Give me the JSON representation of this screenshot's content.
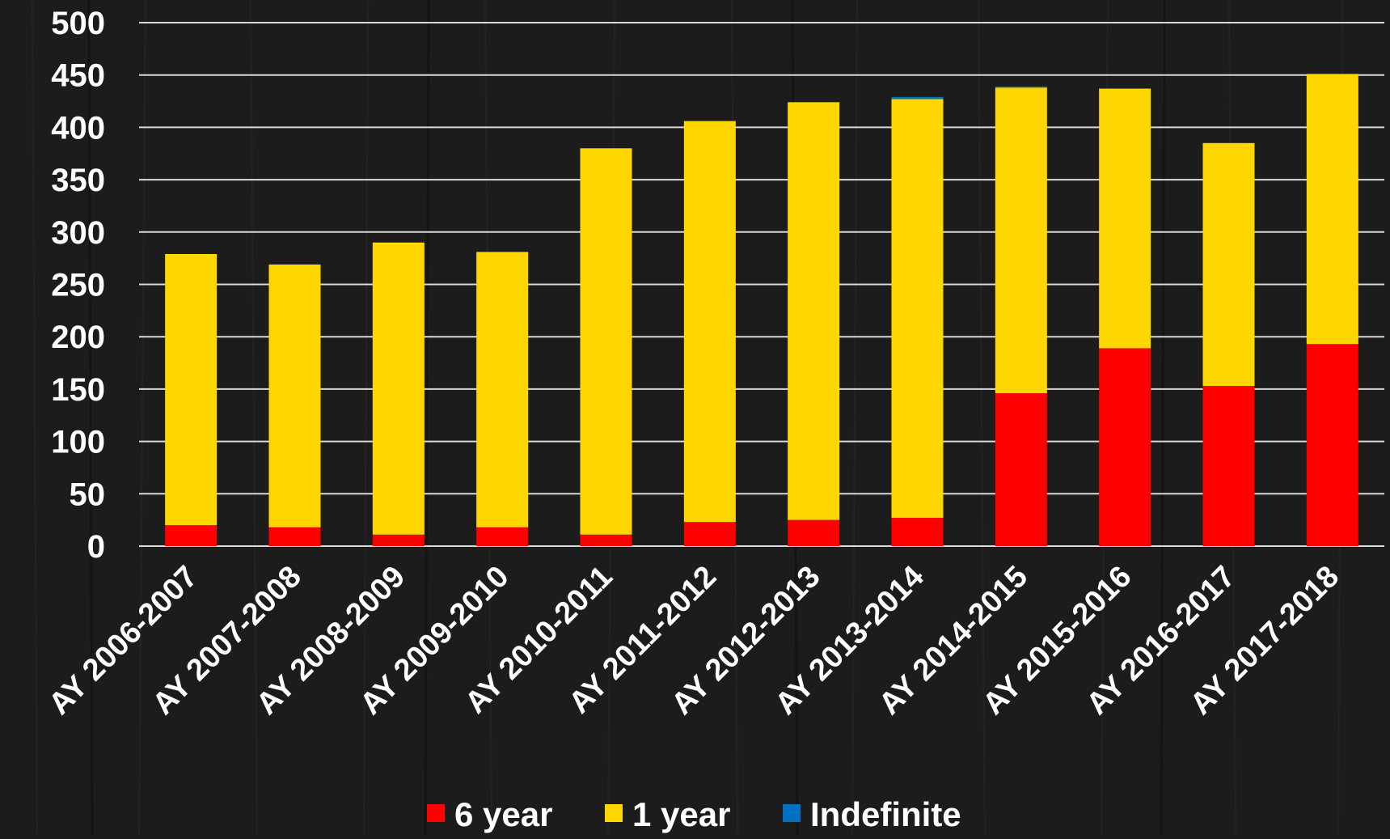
{
  "colors": {
    "six_year": "#ff0000",
    "one_year": "#ffd700",
    "indefinite": "#0070c0",
    "gridline": "#d9d9d9",
    "background": "#1c1c1c",
    "text": "#ffffff"
  },
  "chart_data": {
    "type": "bar",
    "stacked": true,
    "title": "",
    "xlabel": "",
    "ylabel": "",
    "ylim": [
      0,
      500
    ],
    "yticks": [
      0,
      50,
      100,
      150,
      200,
      250,
      300,
      350,
      400,
      450,
      500
    ],
    "grid": true,
    "legend_position": "bottom",
    "categories": [
      "AY 2006-2007",
      "AY 2007-2008",
      "AY 2008-2009",
      "AY 2009-2010",
      "AY 2010-2011",
      "AY 2011-2012",
      "AY 2012-2013",
      "AY 2013-2014",
      "AY 2014-2015",
      "AY 2015-2016",
      "AY 2016-2017",
      "AY 2017-2018"
    ],
    "series": [
      {
        "name": "6 year",
        "color": "#ff0000",
        "values": [
          20,
          18,
          11,
          18,
          11,
          23,
          25,
          27,
          146,
          189,
          153,
          193
        ]
      },
      {
        "name": "1 year",
        "color": "#ffd700",
        "values": [
          259,
          251,
          279,
          263,
          369,
          383,
          399,
          400,
          292,
          248,
          232,
          258
        ]
      },
      {
        "name": "Indefinite",
        "color": "#0070c0",
        "values": [
          0,
          0,
          0,
          0,
          0,
          0,
          0,
          2,
          1,
          0,
          0,
          0
        ]
      }
    ]
  }
}
